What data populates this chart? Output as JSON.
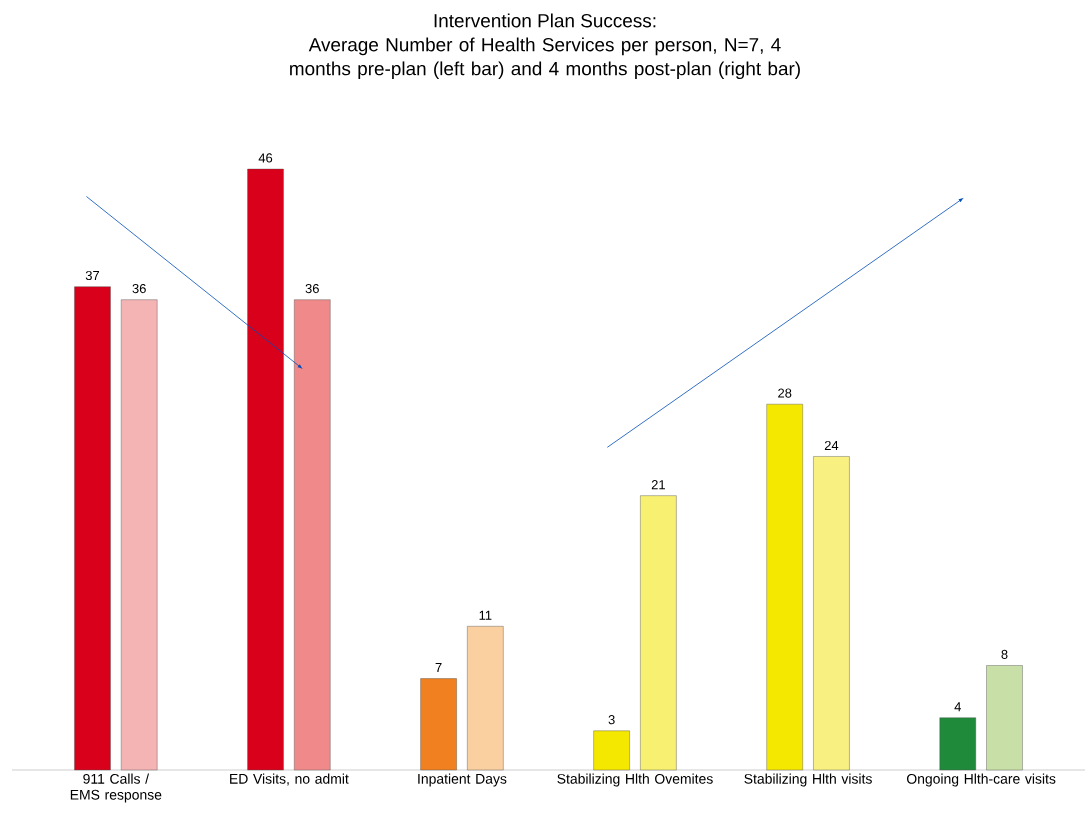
{
  "chart_data": {
    "type": "bar",
    "title": "Intervention Plan Success:",
    "subtitle": "Average Number of Health Services per person, N=7, 4 months pre-plan (left bar) and 4 months post-plan (right bar)",
    "categories": [
      "911 Calls / EMS response",
      "ED Visits, no admit",
      "Inpatient Days",
      "Stabilizing Hlth Ovemites",
      "Stabilizing Hlth visits",
      "Ongoing Hlth-care visits"
    ],
    "series": [
      {
        "colors": [
          "#d9001b",
          "#d9001b",
          "#f08020",
          "#f5e800",
          "#f5e800",
          "#1e8a3a"
        ],
        "values": [
          37,
          46,
          7,
          3,
          28,
          4
        ]
      },
      {
        "colors": [
          "#f4b4b4",
          "#f08a8a",
          "#fbd0a0",
          "#f8f070",
          "#f8f080",
          "#c8e0a8"
        ],
        "values": [
          36,
          36,
          11,
          21,
          24,
          8
        ]
      }
    ],
    "data_labels": true,
    "grid": false
  }
}
